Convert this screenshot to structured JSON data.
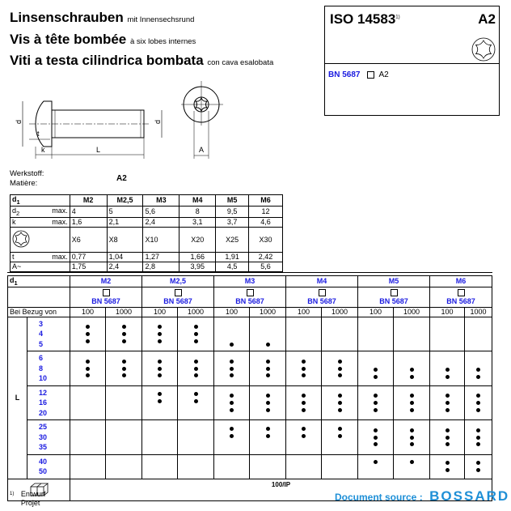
{
  "title": {
    "de": "Linsenschrauben",
    "de_sub": "mit Innensechsrund",
    "fr": "Vis à tête bombée",
    "fr_sub": "à six lobes internes",
    "it": "Viti a testa cilindrica bombata",
    "it_sub": "con cava esalobata"
  },
  "iso_box": {
    "standard": "ISO 14583",
    "footnote_ref": "1)",
    "material": "A2",
    "bn": "BN 5687",
    "bn_material": "A2",
    "icon": "torx-icon"
  },
  "drawing": {
    "d2": "d",
    "d2_sub": "2",
    "d1": "d",
    "d1_sub": "1",
    "t": "t",
    "k": "k",
    "L": "L",
    "A": "A"
  },
  "material": {
    "label_de": "Werkstoff:",
    "label_fr": "Matière:",
    "value": "A2"
  },
  "dimensions": {
    "header": "d",
    "header_sub": "1",
    "sizes": [
      "M2",
      "M2,5",
      "M3",
      "M4",
      "M5",
      "M6"
    ],
    "rows": [
      {
        "label": "d",
        "label_sub": "2",
        "qual": "max.",
        "values": [
          "4",
          "5",
          "5,6",
          "8",
          "9,5",
          "12"
        ]
      },
      {
        "label": "k",
        "qual": "max.",
        "values": [
          "1,6",
          "2,1",
          "2,4",
          "3,1",
          "3,7",
          "4,6"
        ]
      },
      {
        "label": "",
        "icon": "torx-icon",
        "qual": "",
        "values": [
          "X6",
          "X8",
          "X10",
          "X20",
          "X25",
          "X30"
        ]
      },
      {
        "label": "t",
        "qual": "max.",
        "values": [
          "0,77",
          "1,04",
          "1,27",
          "1,66",
          "1,91",
          "2,42"
        ]
      },
      {
        "label": "A~",
        "qual": "",
        "values": [
          "1,75",
          "2,4",
          "2,8",
          "3,95",
          "4,5",
          "5,6"
        ]
      }
    ]
  },
  "availability": {
    "header": "d",
    "header_sub": "1",
    "sizes": [
      "M2",
      "M2,5",
      "M3",
      "M4",
      "M5",
      "M6"
    ],
    "bn": "BN 5687",
    "qty_label": "Bei Bezug von",
    "quantities": [
      "100",
      "1000"
    ],
    "length_label": "L",
    "groups": [
      [
        {
          "L": "3",
          "sizes": [
            "M2",
            "M2,5"
          ]
        },
        {
          "L": "4",
          "sizes": [
            "M2",
            "M2,5"
          ]
        },
        {
          "L": "5",
          "sizes": [
            "M2",
            "M2,5",
            "M3"
          ]
        }
      ],
      [
        {
          "L": "6",
          "sizes": [
            "M2",
            "M2,5",
            "M3",
            "M4"
          ]
        },
        {
          "L": "8",
          "sizes": [
            "M2",
            "M2,5",
            "M3",
            "M4",
            "M5",
            "M6"
          ]
        },
        {
          "L": "10",
          "sizes": [
            "M2",
            "M2,5",
            "M3",
            "M4",
            "M5",
            "M6"
          ]
        }
      ],
      [
        {
          "L": "12",
          "sizes": [
            "M2,5",
            "M3",
            "M4",
            "M5",
            "M6"
          ]
        },
        {
          "L": "16",
          "sizes": [
            "M2,5",
            "M3",
            "M4",
            "M5",
            "M6"
          ]
        },
        {
          "L": "20",
          "sizes": [
            "M3",
            "M4",
            "M5",
            "M6"
          ]
        }
      ],
      [
        {
          "L": "25",
          "sizes": [
            "M3",
            "M4",
            "M5",
            "M6"
          ]
        },
        {
          "L": "30",
          "sizes": [
            "M3",
            "M4",
            "M5",
            "M6"
          ]
        },
        {
          "L": "35",
          "sizes": [
            "M5",
            "M6"
          ]
        }
      ],
      [
        {
          "L": "40",
          "sizes": [
            "M5",
            "M6"
          ]
        },
        {
          "L": "50",
          "sizes": [
            "M6"
          ]
        }
      ]
    ],
    "package": "100/IP",
    "package_icon": "box-icon"
  },
  "footnote": {
    "ref": "1)",
    "de": "Entwurf",
    "fr": "Projet"
  },
  "source": {
    "label": "Document source :",
    "brand": "BOSSARD"
  },
  "colors": {
    "accent": "#1a1ae0",
    "source": "#1f8fd6"
  }
}
